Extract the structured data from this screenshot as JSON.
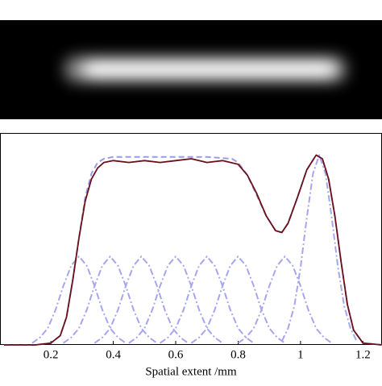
{
  "chart_data": {
    "type": "line",
    "xlabel": "Spatial extent /mm",
    "xlim": [
      0.037,
      1.261
    ],
    "ylim": [
      0,
      1.15
    ],
    "xticks": [
      0.2,
      0.4,
      0.6,
      0.8,
      1,
      1.2
    ],
    "series": [
      {
        "color": "#a6a6ee",
        "style": "dashdot",
        "x": [
          0.14,
          0.165,
          0.19,
          0.215,
          0.24,
          0.265,
          0.29,
          0.315,
          0.34,
          0.365,
          0.39,
          0.415,
          0.44
        ],
        "values": [
          0.01,
          0.04,
          0.09,
          0.19,
          0.32,
          0.43,
          0.48,
          0.43,
          0.32,
          0.19,
          0.09,
          0.04,
          0.01
        ]
      },
      {
        "color": "#a6a6ee",
        "style": "dashdot",
        "x": [
          0.24,
          0.265,
          0.29,
          0.315,
          0.34,
          0.365,
          0.39,
          0.415,
          0.44,
          0.465,
          0.49,
          0.515,
          0.54
        ],
        "values": [
          0.01,
          0.04,
          0.09,
          0.19,
          0.32,
          0.43,
          0.48,
          0.43,
          0.32,
          0.19,
          0.09,
          0.04,
          0.01
        ]
      },
      {
        "color": "#a6a6ee",
        "style": "dashdot",
        "x": [
          0.34,
          0.365,
          0.39,
          0.415,
          0.44,
          0.465,
          0.49,
          0.515,
          0.54,
          0.565,
          0.59,
          0.615,
          0.64
        ],
        "values": [
          0.01,
          0.04,
          0.09,
          0.19,
          0.32,
          0.43,
          0.48,
          0.43,
          0.32,
          0.19,
          0.09,
          0.04,
          0.01
        ]
      },
      {
        "color": "#a6a6ee",
        "style": "dashdot",
        "x": [
          0.45,
          0.475,
          0.5,
          0.525,
          0.55,
          0.575,
          0.6,
          0.625,
          0.65,
          0.675,
          0.7,
          0.725,
          0.75
        ],
        "values": [
          0.01,
          0.04,
          0.09,
          0.19,
          0.32,
          0.43,
          0.48,
          0.43,
          0.32,
          0.19,
          0.09,
          0.04,
          0.01
        ]
      },
      {
        "color": "#a6a6ee",
        "style": "dashdot",
        "x": [
          0.55,
          0.575,
          0.6,
          0.625,
          0.65,
          0.675,
          0.7,
          0.725,
          0.75,
          0.775,
          0.8,
          0.825,
          0.85
        ],
        "values": [
          0.01,
          0.04,
          0.09,
          0.19,
          0.32,
          0.43,
          0.48,
          0.43,
          0.32,
          0.19,
          0.09,
          0.04,
          0.01
        ]
      },
      {
        "color": "#a6a6ee",
        "style": "dashdot",
        "x": [
          0.65,
          0.675,
          0.7,
          0.725,
          0.75,
          0.775,
          0.8,
          0.825,
          0.85,
          0.875,
          0.9,
          0.925,
          0.95
        ],
        "values": [
          0.01,
          0.04,
          0.09,
          0.19,
          0.32,
          0.43,
          0.48,
          0.43,
          0.32,
          0.19,
          0.09,
          0.04,
          0.01
        ]
      },
      {
        "color": "#a6a6ee",
        "style": "dashdot",
        "x": [
          0.8,
          0.825,
          0.85,
          0.875,
          0.9,
          0.925,
          0.95,
          0.975,
          1.0,
          1.025,
          1.05,
          1.075,
          1.1
        ],
        "values": [
          0.01,
          0.04,
          0.09,
          0.19,
          0.32,
          0.43,
          0.48,
          0.43,
          0.32,
          0.19,
          0.09,
          0.04,
          0.01
        ]
      },
      {
        "color": "#a6a6ee",
        "style": "dashdot",
        "x": [
          0.94,
          0.96,
          0.98,
          1.0,
          1.02,
          1.04,
          1.06,
          1.08,
          1.1,
          1.12,
          1.14,
          1.16,
          1.18
        ],
        "values": [
          0.02,
          0.09,
          0.21,
          0.42,
          0.69,
          0.93,
          1.03,
          0.93,
          0.69,
          0.42,
          0.21,
          0.09,
          0.02
        ]
      },
      {
        "color": "#9a9ae8",
        "style": "dashed",
        "x": [
          0.05,
          0.15,
          0.2,
          0.23,
          0.25,
          0.27,
          0.29,
          0.31,
          0.33,
          0.35,
          0.37,
          0.4,
          0.5,
          0.6,
          0.7,
          0.78,
          0.8,
          0.83,
          0.86,
          0.89,
          0.92,
          0.94,
          0.96,
          0.99,
          1.02,
          1.05,
          1.07,
          1.09,
          1.11,
          1.13,
          1.15,
          1.17,
          1.2,
          1.26
        ],
        "values": [
          0,
          0,
          0.01,
          0.05,
          0.15,
          0.35,
          0.58,
          0.8,
          0.93,
          0.99,
          1.01,
          1.02,
          1.02,
          1.02,
          1.02,
          1.01,
          0.99,
          0.92,
          0.81,
          0.7,
          0.62,
          0.61,
          0.66,
          0.8,
          0.95,
          1.03,
          1.01,
          0.9,
          0.7,
          0.45,
          0.22,
          0.08,
          0.01,
          0
        ]
      },
      {
        "color": "#6b0f1a",
        "style": "solid",
        "x": [
          0.05,
          0.15,
          0.2,
          0.23,
          0.25,
          0.27,
          0.29,
          0.31,
          0.33,
          0.35,
          0.37,
          0.4,
          0.45,
          0.5,
          0.55,
          0.6,
          0.65,
          0.7,
          0.75,
          0.8,
          0.83,
          0.86,
          0.89,
          0.92,
          0.94,
          0.96,
          0.99,
          1.02,
          1.05,
          1.07,
          1.09,
          1.11,
          1.13,
          1.15,
          1.17,
          1.2,
          1.26
        ],
        "values": [
          0,
          0,
          0.01,
          0.05,
          0.15,
          0.35,
          0.58,
          0.78,
          0.9,
          0.96,
          0.99,
          1.0,
          0.99,
          1.0,
          0.99,
          1.0,
          1.01,
          0.99,
          1.0,
          0.98,
          0.92,
          0.82,
          0.7,
          0.62,
          0.61,
          0.66,
          0.8,
          0.95,
          1.03,
          1.01,
          0.9,
          0.7,
          0.45,
          0.22,
          0.08,
          0.01,
          0
        ]
      }
    ]
  }
}
